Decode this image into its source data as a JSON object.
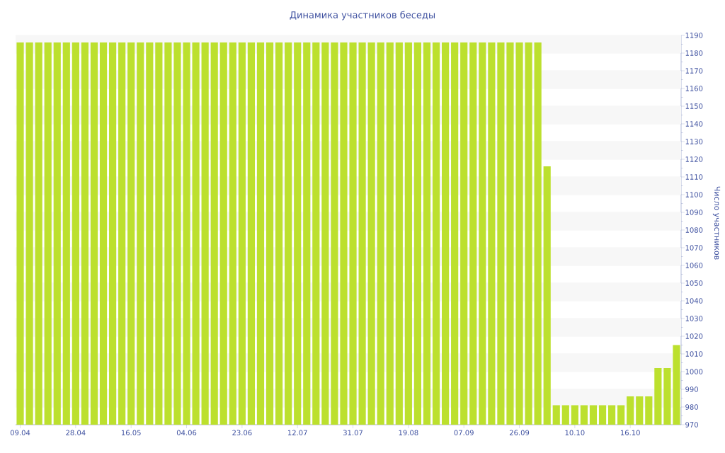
{
  "chart_data": {
    "type": "bar",
    "title": "Динамика участников беседы",
    "ylabel": "Число участников",
    "categories": [
      "09.04",
      null,
      null,
      null,
      null,
      null,
      "28.04",
      null,
      null,
      null,
      null,
      null,
      "16.05",
      null,
      null,
      null,
      null,
      null,
      "04.06",
      null,
      null,
      null,
      null,
      null,
      "23.06",
      null,
      null,
      null,
      null,
      null,
      "12.07",
      null,
      null,
      null,
      null,
      null,
      "31.07",
      null,
      null,
      null,
      null,
      null,
      "19.08",
      null,
      null,
      null,
      null,
      null,
      "07.09",
      null,
      null,
      null,
      null,
      null,
      "26.09",
      null,
      null,
      null,
      null,
      null,
      "10.10",
      null,
      null,
      null,
      null,
      null,
      "16.10",
      null,
      null,
      null,
      null,
      null
    ],
    "values": [
      1186,
      1186,
      1186,
      1186,
      1186,
      1186,
      1186,
      1186,
      1186,
      1186,
      1186,
      1186,
      1186,
      1186,
      1186,
      1186,
      1186,
      1186,
      1186,
      1186,
      1186,
      1186,
      1186,
      1186,
      1186,
      1186,
      1186,
      1186,
      1186,
      1186,
      1186,
      1186,
      1186,
      1186,
      1186,
      1186,
      1186,
      1186,
      1186,
      1186,
      1186,
      1186,
      1186,
      1186,
      1186,
      1186,
      1186,
      1186,
      1186,
      1186,
      1186,
      1186,
      1186,
      1186,
      1186,
      1186,
      1186,
      1116,
      981,
      981,
      981,
      981,
      981,
      981,
      981,
      981,
      986,
      986,
      986,
      1002,
      1002,
      1015
    ],
    "color": "#bce02e",
    "ylim": [
      970,
      1190
    ],
    "yticks": [
      970,
      980,
      990,
      1000,
      1010,
      1020,
      1030,
      1040,
      1050,
      1060,
      1070,
      1080,
      1090,
      1100,
      1110,
      1120,
      1130,
      1140,
      1150,
      1160,
      1170,
      1180,
      1190
    ],
    "grid": "y"
  }
}
